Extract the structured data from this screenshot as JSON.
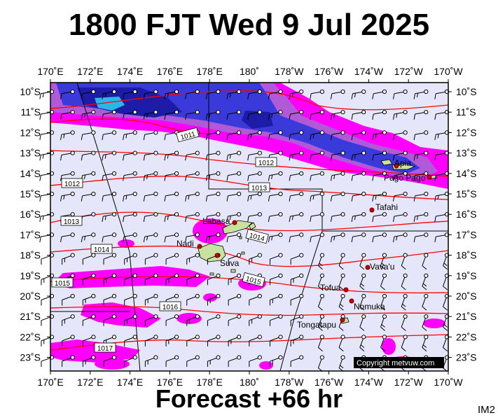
{
  "title": "1800 FJT Wed 9 Jul 2025",
  "footer": "Forecast +66 hr",
  "corner_label": "IM2",
  "copyright": "Copyright metvuw.com",
  "lon_labels": [
    "170˚E",
    "172˚E",
    "174˚E",
    "176˚E",
    "178˚E",
    "180˚",
    "178˚W",
    "176˚W",
    "174˚W",
    "172˚W",
    "170˚W"
  ],
  "lat_labels": [
    "10˚S",
    "11˚S",
    "12˚S",
    "13˚S",
    "14˚S",
    "15˚S",
    "16˚S",
    "17˚S",
    "18˚S",
    "19˚S",
    "20˚S",
    "21˚S",
    "22˚S",
    "23˚S"
  ],
  "isobar_labels": [
    "1011",
    "1012",
    "1012",
    "1013",
    "1013",
    "1014",
    "1014",
    "1015",
    "1015",
    "1016",
    "1017"
  ],
  "places": [
    "Apia",
    "Pago Pago",
    "Tafahi",
    "Labasa",
    "Nadi",
    "Suva",
    "Vava'u",
    "Tofua",
    "Nomuka",
    "Tongatapu"
  ],
  "colors": {
    "background": "#e6e6fa",
    "precip_magenta": "#ff00ff",
    "precip_violet": "#b05ad8",
    "precip_blue": "#3a3adb",
    "precip_deep": "#1c1ca8",
    "precip_cyan": "#28b8e8",
    "isobar": "#ff0000",
    "land": "#c8e2a0",
    "grid": "#000000"
  }
}
